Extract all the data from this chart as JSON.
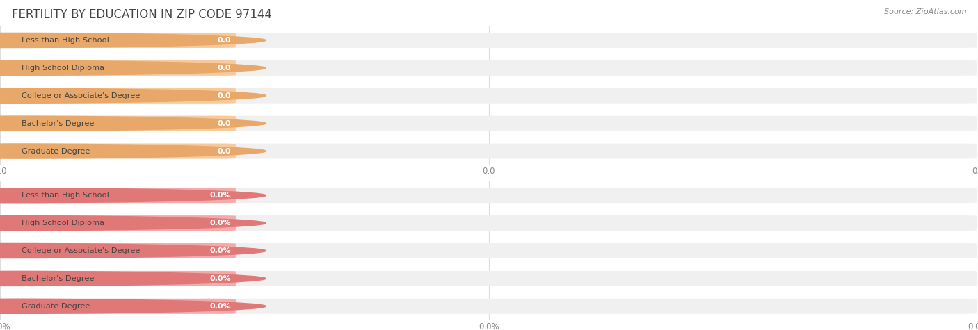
{
  "title": "FERTILITY BY EDUCATION IN ZIP CODE 97144",
  "source_text": "Source: ZipAtlas.com",
  "categories": [
    "Less than High School",
    "High School Diploma",
    "College or Associate's Degree",
    "Bachelor's Degree",
    "Graduate Degree"
  ],
  "top_values": [
    0.0,
    0.0,
    0.0,
    0.0,
    0.0
  ],
  "bottom_values": [
    0.0,
    0.0,
    0.0,
    0.0,
    0.0
  ],
  "top_bar_color": "#F8C99A",
  "top_bar_bg_color": "#F0F0F0",
  "top_accent_color": "#E8A86A",
  "bottom_bar_color": "#F5AAAA",
  "bottom_bar_bg_color": "#F0F0F0",
  "bottom_accent_color": "#E07878",
  "background_color": "#FFFFFF",
  "title_fontsize": 12,
  "bar_value_color": "#E09060",
  "bar_value_color_bottom": "#CC6666",
  "grid_color": "#DDDDDD",
  "tick_color": "#888888",
  "text_color": "#444444",
  "source_color": "#888888"
}
